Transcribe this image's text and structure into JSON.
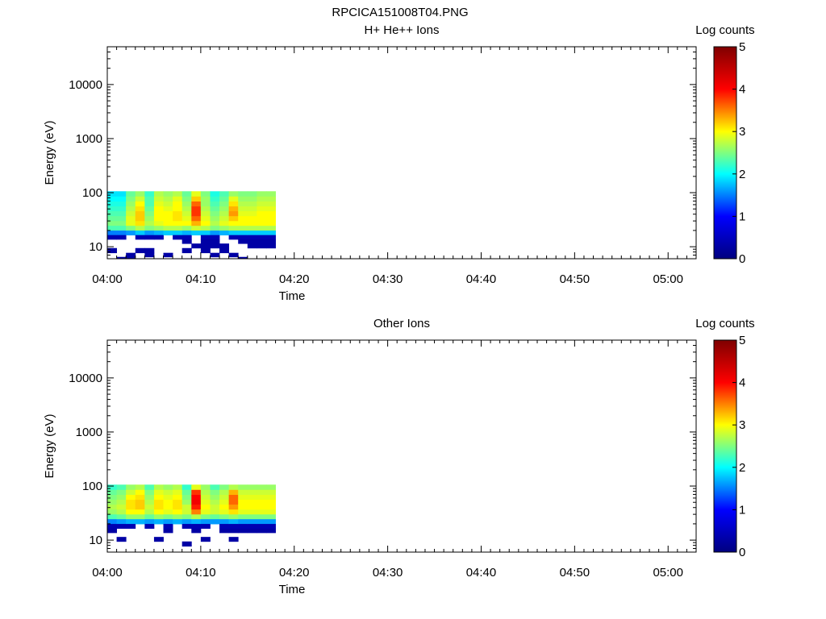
{
  "figure_title": "RPCICA151008T04.PNG",
  "chart_data": [
    {
      "type": "heatmap",
      "title": "H+ He++ Ions",
      "xlabel": "Time",
      "ylabel": "Energy (eV)",
      "colorbar_label": "Log counts",
      "colorbar_ticks": [
        "0",
        "1",
        "2",
        "3",
        "4",
        "5"
      ],
      "colorbar_range": [
        0,
        5
      ],
      "colormap": [
        "#00007f",
        "#0000ff",
        "#00ffff",
        "#ffff00",
        "#ff0000",
        "#7f0000"
      ],
      "y_scale": "log",
      "ylim": [
        6,
        50000
      ],
      "y_ticks": [
        "10",
        "100",
        "1000",
        "10000"
      ],
      "xlim": [
        "04:00",
        "05:03"
      ],
      "x_ticks": [
        "04:00",
        "04:10",
        "04:20",
        "04:30",
        "04:40",
        "04:50",
        "05:00"
      ],
      "time_bins": [
        "04:00",
        "04:01",
        "04:02",
        "04:03",
        "04:04",
        "04:05",
        "04:06",
        "04:07",
        "04:08",
        "04:09",
        "04:10",
        "04:11",
        "04:12",
        "04:13",
        "04:14",
        "04:15",
        "04:16",
        "04:17"
      ],
      "energy_bins_eV": [
        95,
        76,
        62,
        50,
        41,
        33,
        27,
        22,
        18,
        15,
        12.5,
        10.5,
        8.5,
        7,
        6
      ],
      "z_log_counts": [
        [
          1.9,
          1.9,
          2.4,
          2.6,
          2.2,
          2.7,
          2.6,
          2.7,
          2.4,
          2.9,
          2.5,
          2.1,
          2.3,
          2.6,
          2.5,
          2.5,
          2.6,
          2.6
        ],
        [
          2.0,
          2.0,
          2.5,
          2.8,
          2.3,
          2.8,
          2.7,
          2.9,
          2.5,
          3.2,
          2.6,
          2.2,
          2.4,
          2.9,
          2.6,
          2.6,
          2.7,
          2.7
        ],
        [
          2.1,
          2.1,
          2.6,
          3.0,
          2.3,
          2.9,
          2.8,
          3.0,
          2.6,
          3.6,
          2.6,
          2.3,
          2.5,
          3.1,
          2.7,
          2.7,
          2.8,
          2.8
        ],
        [
          2.2,
          2.2,
          2.7,
          3.1,
          2.4,
          3.0,
          2.9,
          3.0,
          2.7,
          3.8,
          2.7,
          2.4,
          2.6,
          3.3,
          2.8,
          2.8,
          2.9,
          2.9
        ],
        [
          2.3,
          2.3,
          2.8,
          3.2,
          2.5,
          3.0,
          3.0,
          3.1,
          2.8,
          3.8,
          2.8,
          2.5,
          2.7,
          3.4,
          2.9,
          2.9,
          3.0,
          3.0
        ],
        [
          2.4,
          2.4,
          2.9,
          3.2,
          2.6,
          3.0,
          3.0,
          3.1,
          2.9,
          3.6,
          2.9,
          2.6,
          2.8,
          3.2,
          3.0,
          3.0,
          3.0,
          3.0
        ],
        [
          2.5,
          2.5,
          2.9,
          3.1,
          2.7,
          2.9,
          3.0,
          3.0,
          3.0,
          3.3,
          3.0,
          2.7,
          2.9,
          3.0,
          3.0,
          3.0,
          3.0,
          3.0
        ],
        [
          2.3,
          2.3,
          2.5,
          2.7,
          2.5,
          2.6,
          2.7,
          2.7,
          2.6,
          2.8,
          2.7,
          2.5,
          2.6,
          2.7,
          2.7,
          2.7,
          2.7,
          2.7
        ],
        [
          1.5,
          1.5,
          1.6,
          1.8,
          1.6,
          1.7,
          1.8,
          1.8,
          1.7,
          1.8,
          1.8,
          1.6,
          1.7,
          1.8,
          1.8,
          1.8,
          1.8,
          1.8
        ],
        [
          0.4,
          0.4,
          null,
          0.4,
          0.4,
          0.4,
          null,
          0.4,
          0.4,
          null,
          0.4,
          0.4,
          null,
          0.4,
          0.4,
          0.4,
          0.4,
          0.4
        ],
        [
          null,
          null,
          null,
          null,
          null,
          null,
          null,
          null,
          0.3,
          null,
          0.3,
          0.3,
          null,
          null,
          0.3,
          0.3,
          0.3,
          0.3
        ],
        [
          null,
          null,
          null,
          null,
          null,
          null,
          null,
          null,
          null,
          0.3,
          0.3,
          0.3,
          0.3,
          null,
          null,
          0.3,
          0.3,
          0.3
        ],
        [
          0.3,
          null,
          null,
          0.3,
          0.3,
          null,
          null,
          null,
          0.3,
          null,
          0.3,
          null,
          0.3,
          null,
          null,
          null,
          null,
          null
        ],
        [
          null,
          null,
          0.3,
          null,
          0.3,
          null,
          0.3,
          null,
          null,
          null,
          null,
          0.3,
          null,
          0.3,
          null,
          null,
          null,
          null
        ],
        [
          null,
          0.3,
          0.3,
          null,
          null,
          null,
          null,
          null,
          null,
          null,
          null,
          null,
          null,
          null,
          0.3,
          null,
          null,
          null
        ]
      ]
    },
    {
      "type": "heatmap",
      "title": "Other Ions",
      "xlabel": "Time",
      "ylabel": "Energy (eV)",
      "colorbar_label": "Log counts",
      "colorbar_ticks": [
        "0",
        "1",
        "2",
        "3",
        "4",
        "5"
      ],
      "colorbar_range": [
        0,
        5
      ],
      "colormap": [
        "#00007f",
        "#0000ff",
        "#00ffff",
        "#ffff00",
        "#ff0000",
        "#7f0000"
      ],
      "y_scale": "log",
      "ylim": [
        6,
        50000
      ],
      "y_ticks": [
        "10",
        "100",
        "1000",
        "10000"
      ],
      "xlim": [
        "04:00",
        "05:03"
      ],
      "x_ticks": [
        "04:00",
        "04:10",
        "04:20",
        "04:30",
        "04:40",
        "04:50",
        "05:00"
      ],
      "time_bins": [
        "04:00",
        "04:01",
        "04:02",
        "04:03",
        "04:04",
        "04:05",
        "04:06",
        "04:07",
        "04:08",
        "04:09",
        "04:10",
        "04:11",
        "04:12",
        "04:13",
        "04:14",
        "04:15",
        "04:16",
        "04:17"
      ],
      "energy_bins_eV": [
        95,
        76,
        62,
        50,
        41,
        33,
        27,
        22,
        18,
        15,
        12.5,
        10.5,
        8.5,
        7,
        6
      ],
      "z_log_counts": [
        [
          2.2,
          2.3,
          2.6,
          2.7,
          2.3,
          2.7,
          2.6,
          2.7,
          2.2,
          2.9,
          2.6,
          2.3,
          2.5,
          2.7,
          2.6,
          2.6,
          2.6,
          2.6
        ],
        [
          2.4,
          2.5,
          2.8,
          3.0,
          2.5,
          2.9,
          2.8,
          2.9,
          2.4,
          3.8,
          2.7,
          2.5,
          2.7,
          3.3,
          2.8,
          2.8,
          2.8,
          2.8
        ],
        [
          2.5,
          2.6,
          3.0,
          3.1,
          2.6,
          3.0,
          2.9,
          3.0,
          2.5,
          4.0,
          2.8,
          2.6,
          2.8,
          3.6,
          2.9,
          2.9,
          2.9,
          2.9
        ],
        [
          2.6,
          2.7,
          3.1,
          3.2,
          2.7,
          3.1,
          3.0,
          3.1,
          2.6,
          4.1,
          2.9,
          2.7,
          2.9,
          3.6,
          3.0,
          3.0,
          3.0,
          3.0
        ],
        [
          2.7,
          2.8,
          3.1,
          3.2,
          2.8,
          3.1,
          3.0,
          3.1,
          2.8,
          3.9,
          3.0,
          2.8,
          3.0,
          3.4,
          3.0,
          3.0,
          3.0,
          3.0
        ],
        [
          2.6,
          2.7,
          3.0,
          3.0,
          2.7,
          3.0,
          2.9,
          3.0,
          2.8,
          3.5,
          2.9,
          2.8,
          2.9,
          3.1,
          2.9,
          2.9,
          2.9,
          2.9
        ],
        [
          2.3,
          2.4,
          2.6,
          2.6,
          2.4,
          2.6,
          2.5,
          2.6,
          2.5,
          2.7,
          2.5,
          2.4,
          2.5,
          2.6,
          2.5,
          2.5,
          2.5,
          2.5
        ],
        [
          1.5,
          1.6,
          1.7,
          1.7,
          1.6,
          1.7,
          1.6,
          1.7,
          1.6,
          1.7,
          1.6,
          1.6,
          1.6,
          1.7,
          1.6,
          1.6,
          1.6,
          1.6
        ],
        [
          0.4,
          0.4,
          0.4,
          null,
          0.4,
          null,
          0.4,
          null,
          0.4,
          0.4,
          0.4,
          null,
          0.4,
          0.4,
          0.4,
          0.4,
          0.4,
          0.4
        ],
        [
          0.3,
          null,
          null,
          null,
          null,
          null,
          0.3,
          null,
          null,
          0.3,
          null,
          null,
          0.3,
          0.3,
          0.3,
          0.3,
          0.3,
          0.3
        ],
        [
          null,
          null,
          null,
          null,
          null,
          null,
          null,
          null,
          null,
          null,
          null,
          null,
          null,
          null,
          null,
          null,
          null,
          null
        ],
        [
          null,
          0.3,
          null,
          null,
          null,
          0.3,
          null,
          null,
          null,
          null,
          0.3,
          null,
          null,
          0.3,
          null,
          null,
          null,
          null
        ],
        [
          null,
          null,
          null,
          null,
          null,
          null,
          null,
          null,
          0.3,
          null,
          null,
          null,
          null,
          null,
          null,
          null,
          null,
          null
        ],
        [
          null,
          null,
          null,
          null,
          null,
          null,
          null,
          null,
          null,
          null,
          null,
          null,
          null,
          null,
          null,
          null,
          null,
          null
        ],
        [
          null,
          null,
          null,
          null,
          null,
          null,
          null,
          null,
          null,
          null,
          null,
          null,
          null,
          null,
          null,
          null,
          null,
          null
        ]
      ]
    }
  ]
}
